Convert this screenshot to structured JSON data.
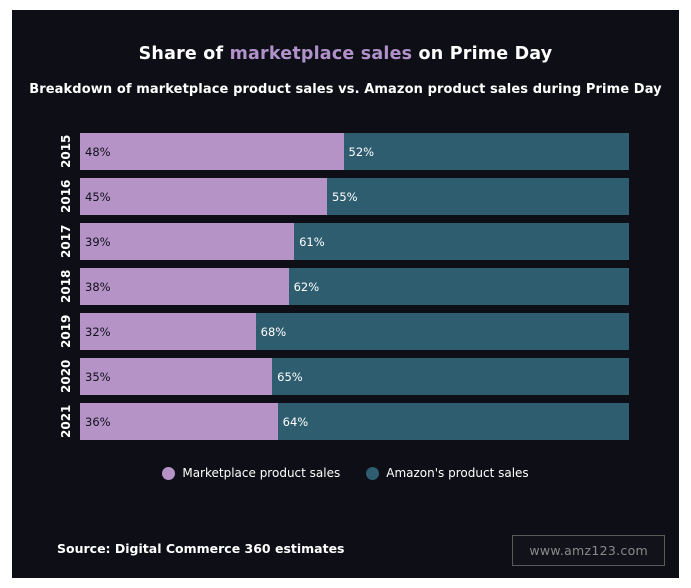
{
  "title": {
    "prefix": "Share of ",
    "highlight": "marketplace sales",
    "suffix": " on Prime Day"
  },
  "subtitle": "Breakdown of marketplace product sales vs. Amazon product sales during Prime Day",
  "chart_data": {
    "type": "bar",
    "orientation": "horizontal-stacked",
    "categories": [
      "2015",
      "2016",
      "2017",
      "2018",
      "2019",
      "2020",
      "2021"
    ],
    "series": [
      {
        "name": "Marketplace product sales",
        "color": "#b593c7",
        "values": [
          48,
          45,
          39,
          38,
          32,
          35,
          36
        ]
      },
      {
        "name": "Amazon's product sales",
        "color": "#2e5d70",
        "values": [
          52,
          55,
          61,
          62,
          68,
          65,
          64
        ]
      }
    ],
    "value_suffix": "%",
    "xlim": [
      0,
      100
    ],
    "grid": false,
    "legend_position": "bottom"
  },
  "legend": [
    {
      "label": "Marketplace product sales",
      "color": "#b593c7"
    },
    {
      "label": "Amazon's product sales",
      "color": "#2e5d70"
    }
  ],
  "source": "Source: Digital Commerce 360 estimates",
  "watermark": "www.amz123.com",
  "colors": {
    "background": "#0e0e16",
    "text": "#ffffff",
    "title_highlight": "#b091c9",
    "marketplace": "#b593c7",
    "amazon": "#2e5d70"
  }
}
